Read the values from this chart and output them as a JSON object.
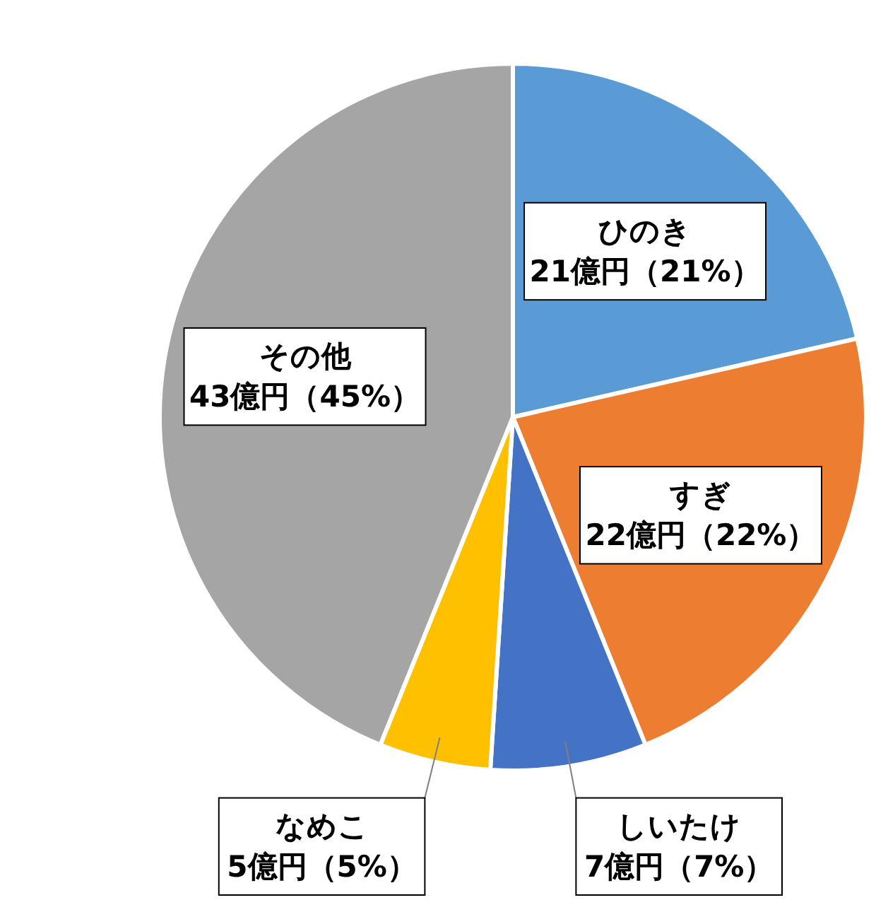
{
  "chart_data": {
    "type": "pie",
    "categories": [
      "ひのき",
      "すぎ",
      "しいたけ",
      "なめこ",
      "その他"
    ],
    "values": [
      21,
      22,
      7,
      5,
      43
    ],
    "value_labels": [
      "21億円（21%）",
      "22億円（22%）",
      "7億円（7%）",
      "5億円（5%）",
      "43億円（45%）"
    ],
    "colors": [
      "#5b9bd5",
      "#ed7d31",
      "#4472c4",
      "#ffc000",
      "#a5a5a5"
    ],
    "legend": false
  }
}
